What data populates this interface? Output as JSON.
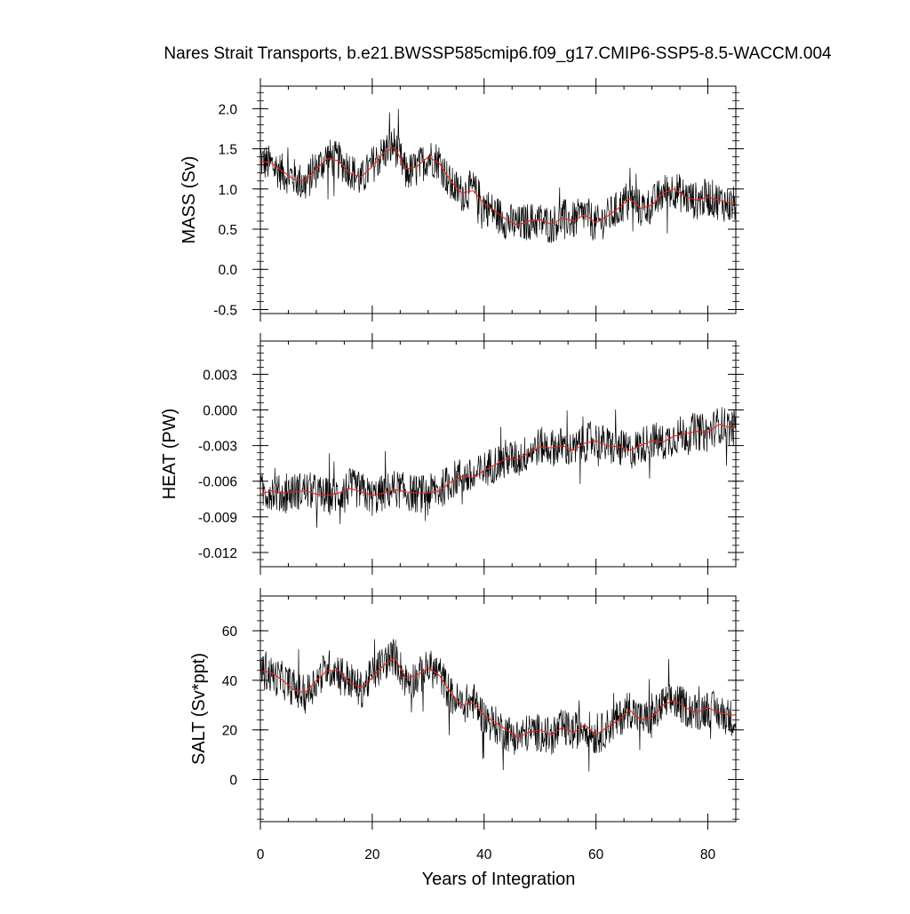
{
  "chart_data": {
    "type": "line",
    "title": "Nares Strait Transports, b.e21.BWSSP585cmip6.f09_g17.CMIP6-SSP5-8.5-WACCM.004",
    "xlabel": "Years of Integration",
    "xlim": [
      0,
      85
    ],
    "xticks": [
      0,
      20,
      40,
      60,
      80
    ],
    "colors": {
      "raw": "#000000",
      "smooth": "#e8251f"
    },
    "panels": [
      {
        "ylabel": "MASS (Sv)",
        "ylim": [
          -0.55,
          2.28
        ],
        "yticks": [
          -0.5,
          0.0,
          0.5,
          1.0,
          1.5,
          2.0
        ],
        "yticklabels": [
          "-0.5",
          "0.0",
          "0.5",
          "1.0",
          "1.5",
          "2.0"
        ],
        "series": [
          {
            "role": "raw",
            "x": [
              0,
              2,
              4,
              6,
              8,
              10,
              12,
              14,
              16,
              18,
              20,
              22,
              24,
              26,
              28,
              30,
              32,
              34,
              36,
              38,
              40,
              42,
              44,
              46,
              48,
              50,
              52,
              54,
              56,
              58,
              60,
              62,
              64,
              66,
              68,
              70,
              72,
              74,
              76,
              78,
              80,
              82,
              84
            ],
            "values": [
              1.35,
              1.3,
              1.2,
              1.15,
              1.05,
              1.25,
              1.4,
              1.35,
              1.25,
              1.1,
              1.3,
              1.45,
              1.55,
              1.2,
              1.25,
              1.4,
              1.35,
              1.05,
              0.95,
              1.0,
              0.8,
              0.7,
              0.6,
              0.55,
              0.6,
              0.6,
              0.55,
              0.65,
              0.6,
              0.7,
              0.55,
              0.65,
              0.75,
              0.9,
              0.75,
              0.8,
              0.95,
              1.0,
              0.9,
              0.85,
              0.9,
              0.85,
              0.8
            ]
          },
          {
            "role": "smooth",
            "x": [
              0,
              2,
              4,
              6,
              8,
              10,
              12,
              14,
              16,
              18,
              20,
              22,
              24,
              26,
              28,
              30,
              32,
              34,
              36,
              38,
              40,
              42,
              44,
              46,
              48,
              50,
              52,
              54,
              56,
              58,
              60,
              62,
              64,
              66,
              68,
              70,
              72,
              74,
              76,
              78,
              80,
              82,
              84
            ],
            "values": [
              1.35,
              1.32,
              1.22,
              1.12,
              1.1,
              1.25,
              1.38,
              1.35,
              1.2,
              1.15,
              1.28,
              1.45,
              1.52,
              1.25,
              1.28,
              1.4,
              1.32,
              1.1,
              0.95,
              0.98,
              0.82,
              0.72,
              0.62,
              0.55,
              0.6,
              0.62,
              0.56,
              0.64,
              0.6,
              0.68,
              0.58,
              0.66,
              0.76,
              0.88,
              0.76,
              0.8,
              0.95,
              1.0,
              0.9,
              0.86,
              0.9,
              0.86,
              0.82
            ]
          }
        ]
      },
      {
        "ylabel": "HEAT (PW)",
        "ylim": [
          -0.0132,
          0.0058
        ],
        "yticks": [
          -0.012,
          -0.009,
          -0.006,
          -0.003,
          0.0,
          0.003
        ],
        "yticklabels": [
          "-0.012",
          "-0.009",
          "-0.006",
          "-0.003",
          "0.000",
          "0.003"
        ],
        "series": [
          {
            "role": "raw",
            "x": [
              0,
              2,
              4,
              6,
              8,
              10,
              12,
              14,
              16,
              18,
              20,
              22,
              24,
              26,
              28,
              30,
              32,
              34,
              36,
              38,
              40,
              42,
              44,
              46,
              48,
              50,
              52,
              54,
              56,
              58,
              60,
              62,
              64,
              66,
              68,
              70,
              72,
              74,
              76,
              78,
              80,
              82,
              84
            ],
            "values": [
              -0.007,
              -0.0068,
              -0.0072,
              -0.0069,
              -0.0067,
              -0.007,
              -0.0073,
              -0.0071,
              -0.0065,
              -0.0068,
              -0.0074,
              -0.007,
              -0.0066,
              -0.0069,
              -0.0071,
              -0.007,
              -0.0068,
              -0.006,
              -0.0055,
              -0.0058,
              -0.005,
              -0.0045,
              -0.004,
              -0.0042,
              -0.0035,
              -0.003,
              -0.0032,
              -0.003,
              -0.0035,
              -0.0028,
              -0.0025,
              -0.003,
              -0.0032,
              -0.0035,
              -0.003,
              -0.0025,
              -0.0028,
              -0.0022,
              -0.002,
              -0.0018,
              -0.002,
              -0.0012,
              -0.0015
            ]
          },
          {
            "role": "smooth",
            "x": [
              0,
              2,
              4,
              6,
              8,
              10,
              12,
              14,
              16,
              18,
              20,
              22,
              24,
              26,
              28,
              30,
              32,
              34,
              36,
              38,
              40,
              42,
              44,
              46,
              48,
              50,
              52,
              54,
              56,
              58,
              60,
              62,
              64,
              66,
              68,
              70,
              72,
              74,
              76,
              78,
              80,
              82,
              84
            ],
            "values": [
              -0.0071,
              -0.0068,
              -0.007,
              -0.0069,
              -0.0068,
              -0.0071,
              -0.0072,
              -0.007,
              -0.0066,
              -0.0069,
              -0.0072,
              -0.007,
              -0.0067,
              -0.0069,
              -0.007,
              -0.007,
              -0.0068,
              -0.0061,
              -0.0056,
              -0.0057,
              -0.0051,
              -0.0046,
              -0.0041,
              -0.0042,
              -0.0036,
              -0.0031,
              -0.0032,
              -0.003,
              -0.0034,
              -0.0028,
              -0.0026,
              -0.003,
              -0.0031,
              -0.0034,
              -0.003,
              -0.0026,
              -0.0027,
              -0.0022,
              -0.002,
              -0.0018,
              -0.0019,
              -0.0012,
              -0.0015
            ]
          }
        ]
      },
      {
        "ylabel": "SALT (Sv*ppt)",
        "ylim": [
          -17,
          74
        ],
        "yticks": [
          0,
          20,
          40,
          60
        ],
        "yticklabels": [
          "0",
          "20",
          "40",
          "60"
        ],
        "series": [
          {
            "role": "raw",
            "x": [
              0,
              2,
              4,
              6,
              8,
              10,
              12,
              14,
              16,
              18,
              20,
              22,
              24,
              26,
              28,
              30,
              32,
              34,
              36,
              38,
              40,
              42,
              44,
              46,
              48,
              50,
              52,
              54,
              56,
              58,
              60,
              62,
              64,
              66,
              68,
              70,
              72,
              74,
              76,
              78,
              80,
              82,
              84
            ],
            "values": [
              44,
              42,
              40,
              37,
              34,
              40,
              45,
              44,
              40,
              36,
              42,
              47,
              50,
              40,
              41,
              45,
              43,
              34,
              30,
              32,
              25,
              22,
              19,
              17,
              19,
              19,
              17,
              21,
              19,
              22,
              17,
              21,
              24,
              29,
              24,
              25,
              30,
              32,
              29,
              27,
              29,
              27,
              25
            ]
          },
          {
            "role": "smooth",
            "x": [
              0,
              2,
              4,
              6,
              8,
              10,
              12,
              14,
              16,
              18,
              20,
              22,
              24,
              26,
              28,
              30,
              32,
              34,
              36,
              38,
              40,
              42,
              44,
              46,
              48,
              50,
              52,
              54,
              56,
              58,
              60,
              62,
              64,
              66,
              68,
              70,
              72,
              74,
              76,
              78,
              80,
              82,
              84
            ],
            "values": [
              44,
              43,
              40,
              36,
              35,
              40,
              44,
              44,
              39,
              37,
              41,
              46,
              49,
              41,
              42,
              45,
              42,
              35,
              30,
              31,
              26,
              23,
              20,
              17,
              19,
              20,
              18,
              21,
              19,
              22,
              18,
              21,
              24,
              28,
              24,
              25,
              30,
              32,
              29,
              27,
              29,
              27,
              26
            ]
          }
        ]
      }
    ]
  }
}
